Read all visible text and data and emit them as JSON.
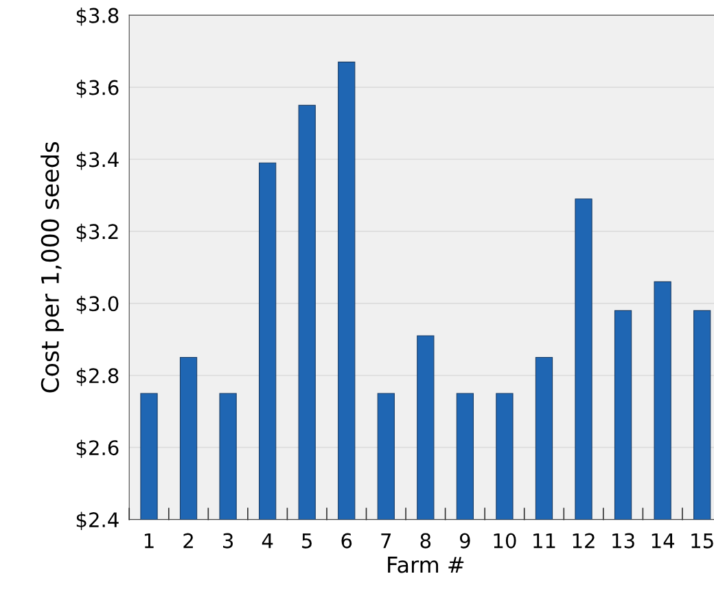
{
  "chart_data": {
    "type": "bar",
    "xlabel": "Farm #",
    "ylabel": "Cost per 1,000 seeds",
    "categories": [
      "1",
      "2",
      "3",
      "4",
      "5",
      "6",
      "7",
      "8",
      "9",
      "10",
      "11",
      "12",
      "13",
      "14",
      "15"
    ],
    "values": [
      2.75,
      2.85,
      2.75,
      3.39,
      3.55,
      3.67,
      2.75,
      2.91,
      2.75,
      2.75,
      2.85,
      3.29,
      2.98,
      3.06,
      2.98
    ],
    "color": "#1f66b3",
    "ylim": [
      2.4,
      3.8
    ],
    "yticks": [
      {
        "value": 2.4,
        "label": "$2.4"
      },
      {
        "value": 2.6,
        "label": "$2.6"
      },
      {
        "value": 2.8,
        "label": "$2.8"
      },
      {
        "value": 3.0,
        "label": "$3.0"
      },
      {
        "value": 3.2,
        "label": "$3.2"
      },
      {
        "value": 3.4,
        "label": "$3.4"
      },
      {
        "value": 3.6,
        "label": "$3.6"
      },
      {
        "value": 3.8,
        "label": "$3.8"
      }
    ],
    "grid": "y",
    "legend": false
  }
}
